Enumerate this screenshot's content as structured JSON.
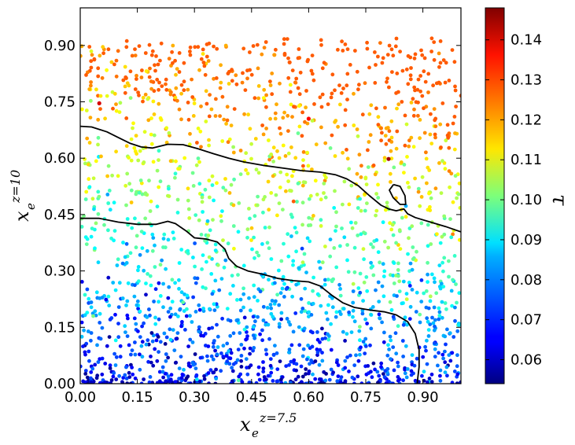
{
  "chart_data": {
    "type": "scatter",
    "title": "",
    "xlabel": {
      "base": "x",
      "sub": "e",
      "sup": "z=7.5"
    },
    "ylabel": {
      "base": "x",
      "sub": "e",
      "sup": "z=10"
    },
    "xlim": [
      0.0,
      1.0
    ],
    "ylim": [
      0.0,
      1.0
    ],
    "x_ticks": [
      "0.00",
      "0.15",
      "0.30",
      "0.45",
      "0.60",
      "0.75",
      "0.90"
    ],
    "y_ticks": [
      "0.00",
      "0.15",
      "0.30",
      "0.45",
      "0.60",
      "0.75",
      "0.90"
    ],
    "grid": false,
    "colorbar": {
      "label": "τ",
      "colormap": "jet",
      "range": [
        0.054,
        0.148
      ],
      "ticks": [
        "0.06",
        "0.07",
        "0.08",
        "0.09",
        "0.10",
        "0.11",
        "0.12",
        "0.13",
        "0.14"
      ]
    },
    "contours": [
      {
        "level": "upper",
        "points": [
          [
            0.0,
            0.685
          ],
          [
            0.03,
            0.683
          ],
          [
            0.07,
            0.67
          ],
          [
            0.1,
            0.655
          ],
          [
            0.13,
            0.64
          ],
          [
            0.16,
            0.63
          ],
          [
            0.19,
            0.627
          ],
          [
            0.23,
            0.637
          ],
          [
            0.27,
            0.636
          ],
          [
            0.31,
            0.625
          ],
          [
            0.35,
            0.612
          ],
          [
            0.39,
            0.6
          ],
          [
            0.43,
            0.59
          ],
          [
            0.48,
            0.581
          ],
          [
            0.53,
            0.574
          ],
          [
            0.58,
            0.567
          ],
          [
            0.63,
            0.563
          ],
          [
            0.67,
            0.556
          ],
          [
            0.7,
            0.545
          ],
          [
            0.73,
            0.527
          ],
          [
            0.76,
            0.5
          ],
          [
            0.79,
            0.475
          ],
          [
            0.81,
            0.465
          ],
          [
            0.83,
            0.46
          ],
          [
            0.85,
            0.465
          ],
          [
            0.86,
            0.452
          ],
          [
            0.88,
            0.442
          ],
          [
            0.92,
            0.43
          ],
          [
            0.96,
            0.418
          ],
          [
            1.0,
            0.404
          ]
        ]
      },
      {
        "level": "lower",
        "points": [
          [
            0.0,
            0.44
          ],
          [
            0.05,
            0.44
          ],
          [
            0.1,
            0.43
          ],
          [
            0.15,
            0.424
          ],
          [
            0.2,
            0.424
          ],
          [
            0.23,
            0.432
          ],
          [
            0.25,
            0.426
          ],
          [
            0.28,
            0.405
          ],
          [
            0.3,
            0.388
          ],
          [
            0.33,
            0.385
          ],
          [
            0.36,
            0.377
          ],
          [
            0.38,
            0.358
          ],
          [
            0.39,
            0.333
          ],
          [
            0.41,
            0.313
          ],
          [
            0.44,
            0.3
          ],
          [
            0.48,
            0.291
          ],
          [
            0.52,
            0.28
          ],
          [
            0.56,
            0.274
          ],
          [
            0.6,
            0.271
          ],
          [
            0.63,
            0.26
          ],
          [
            0.66,
            0.236
          ],
          [
            0.69,
            0.215
          ],
          [
            0.72,
            0.203
          ],
          [
            0.76,
            0.196
          ],
          [
            0.8,
            0.191
          ],
          [
            0.83,
            0.183
          ],
          [
            0.86,
            0.165
          ],
          [
            0.88,
            0.133
          ],
          [
            0.89,
            0.09
          ],
          [
            0.89,
            0.045
          ],
          [
            0.885,
            0.0
          ]
        ]
      },
      {
        "level": "loop",
        "points": [
          [
            0.823,
            0.53
          ],
          [
            0.84,
            0.525
          ],
          [
            0.853,
            0.5
          ],
          [
            0.855,
            0.477
          ],
          [
            0.84,
            0.477
          ],
          [
            0.822,
            0.495
          ],
          [
            0.812,
            0.515
          ],
          [
            0.823,
            0.53
          ]
        ]
      }
    ],
    "highlighted_points": [
      {
        "x": 0.05,
        "y": 0.746,
        "tau": 0.14
      },
      {
        "x": 0.55,
        "y": 0.855,
        "tau": 0.128
      },
      {
        "x": 0.6,
        "y": 0.705,
        "tau": 0.136
      },
      {
        "x": 0.81,
        "y": 0.598,
        "tau": 0.145
      },
      {
        "x": 0.51,
        "y": 0.875,
        "tau": 0.122
      },
      {
        "x": 0.79,
        "y": 0.68,
        "tau": 0.125
      }
    ],
    "point_distribution": {
      "n_points": 2000,
      "description_rule": "tau increases with y and decreases toward bottom-left"
    }
  }
}
